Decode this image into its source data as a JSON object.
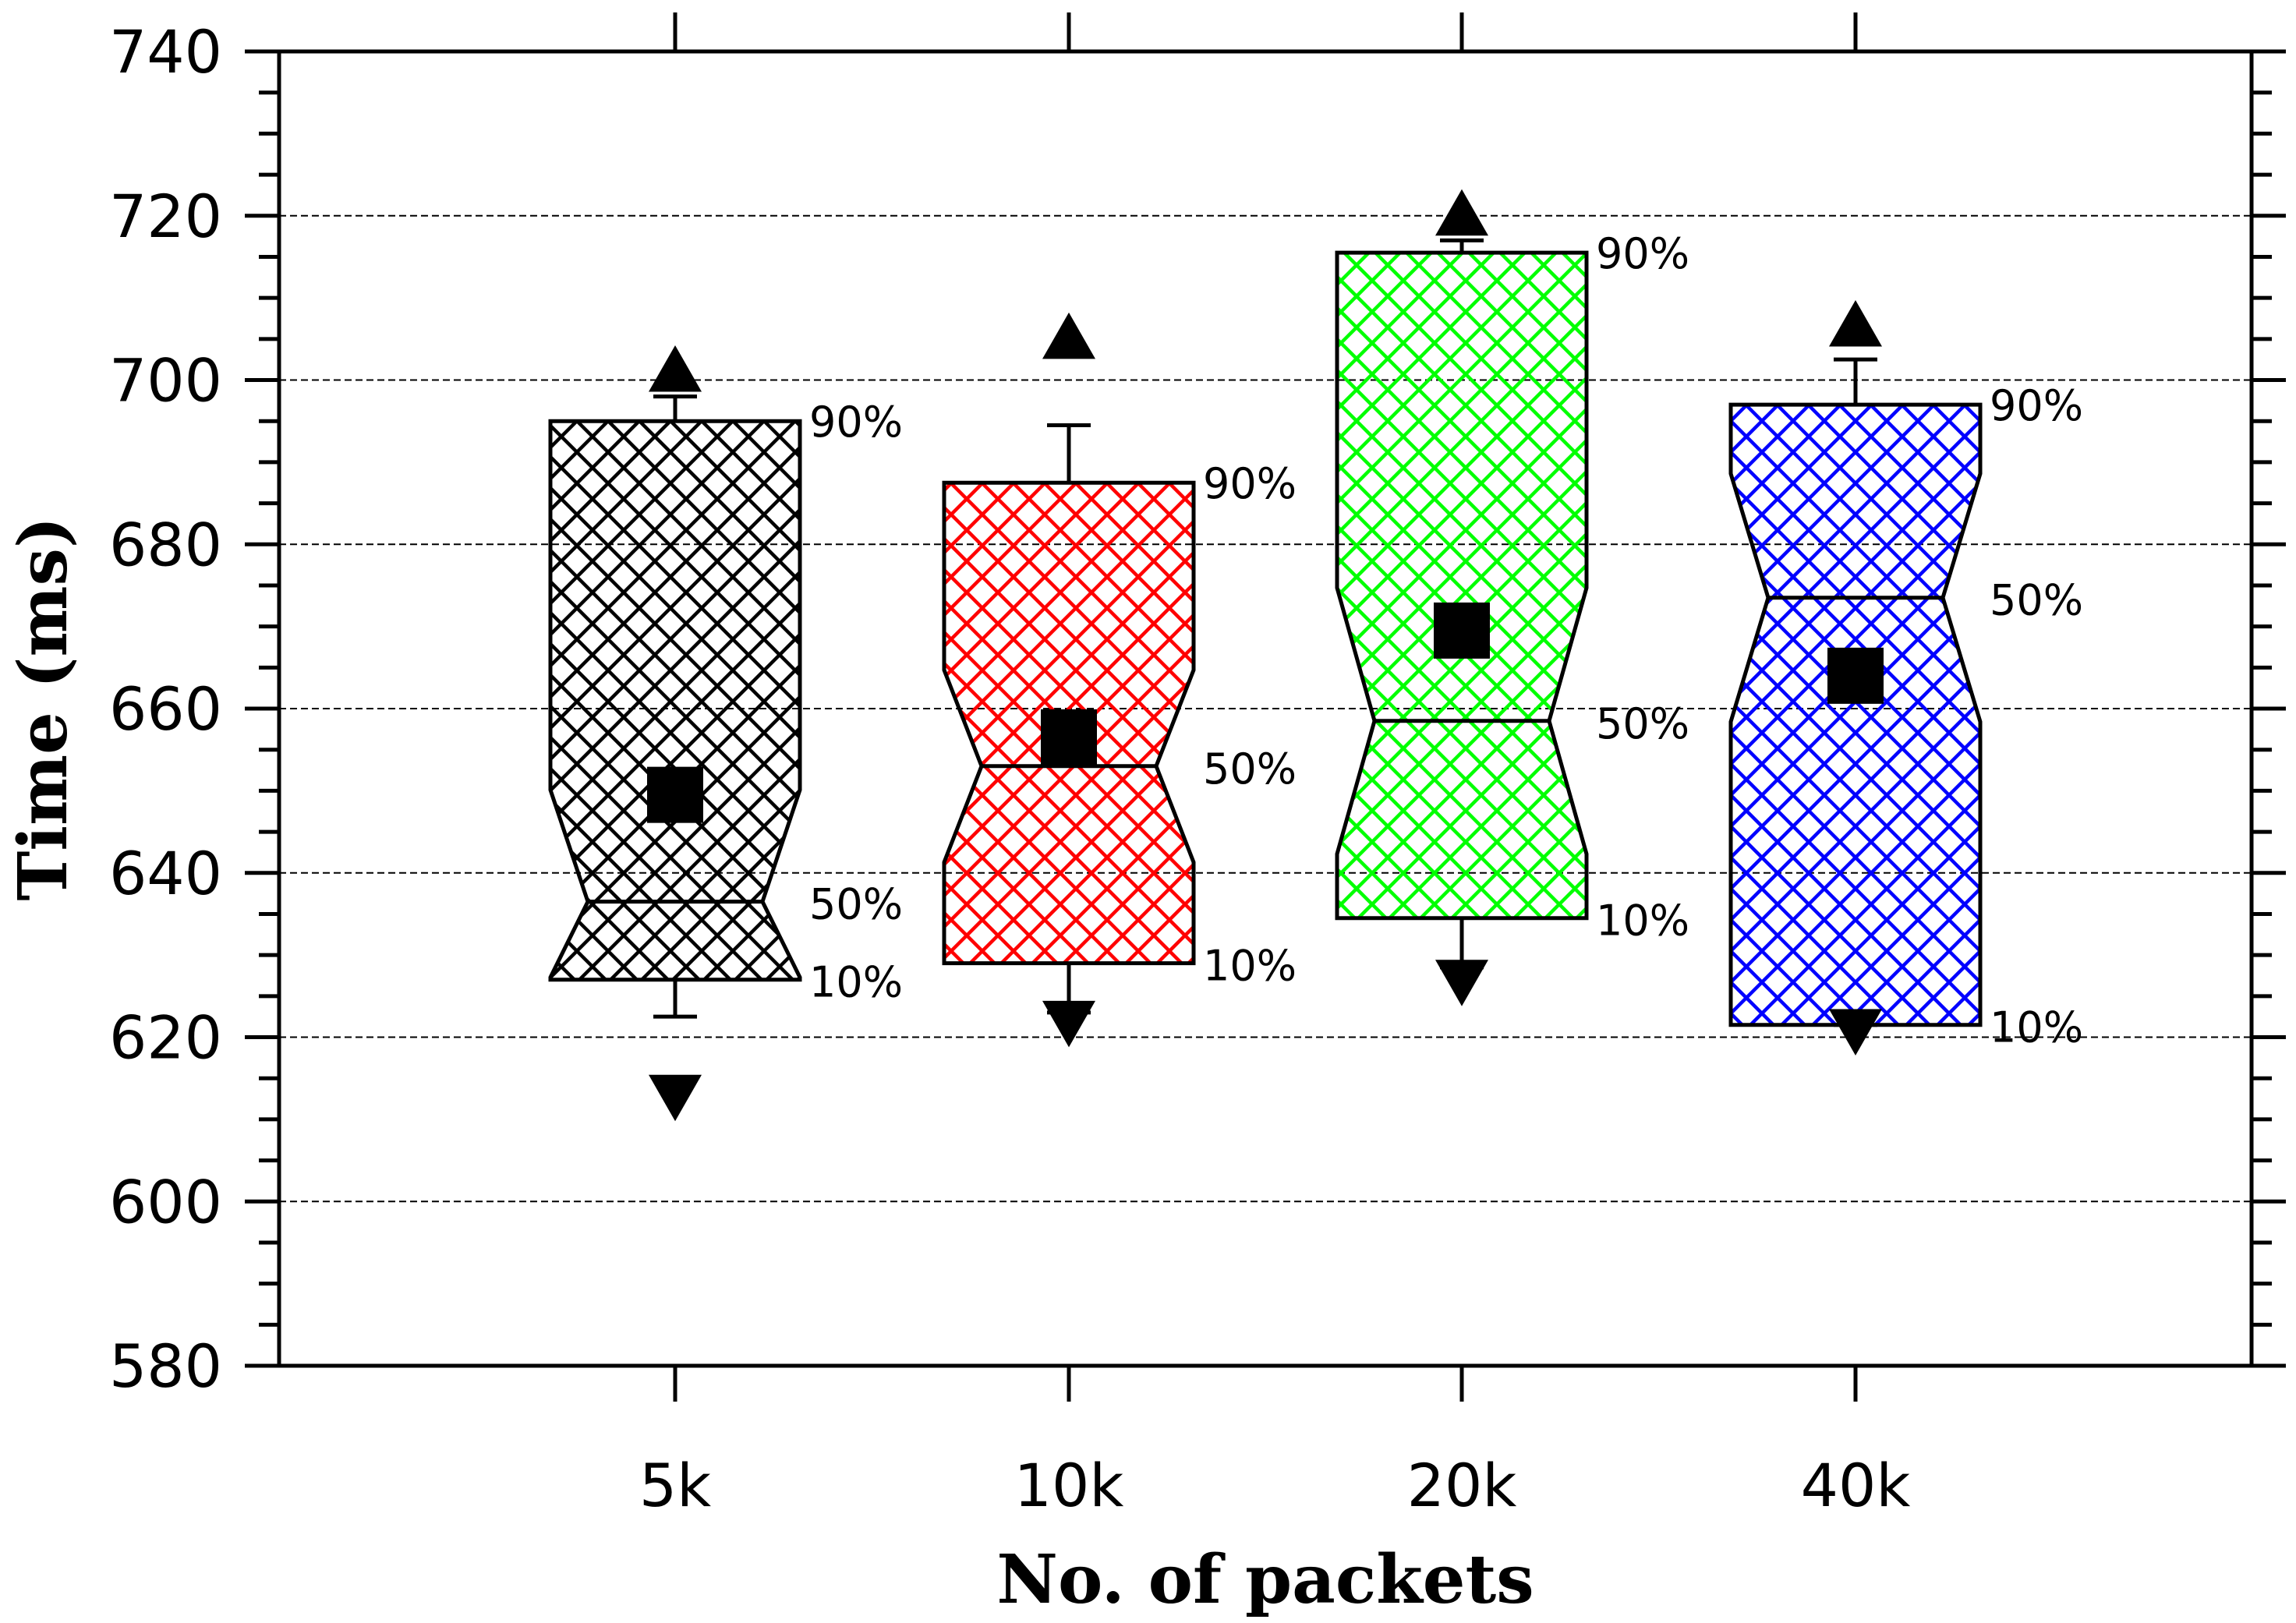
{
  "chart_data": {
    "type": "box",
    "xlabel": "No. of packets",
    "ylabel": "Time (ms)",
    "ylim": [
      580,
      740
    ],
    "yticks": [
      580,
      600,
      620,
      640,
      660,
      680,
      700,
      720,
      740
    ],
    "ytick_labels": [
      "580",
      "600",
      "620",
      "640",
      "660",
      "680",
      "700",
      "720",
      "740"
    ],
    "grid": true,
    "categories": [
      "5k",
      "10k",
      "20k",
      "40k"
    ],
    "percentile_labels": {
      "p10": "10%",
      "p50": "50%",
      "p90": "90%"
    },
    "boxes": [
      {
        "category": "5k",
        "color": "#000000",
        "p10": 627,
        "p50": 636.5,
        "p90": 695,
        "mean": 649.5,
        "whisker_low": 622.5,
        "whisker_high": 698,
        "max": 701,
        "min": 613
      },
      {
        "category": "10k",
        "color": "#ff0000",
        "p10": 629,
        "p50": 653,
        "p90": 687.5,
        "mean": 656.5,
        "whisker_low": 623,
        "whisker_high": 694.5,
        "max": 705,
        "min": 622
      },
      {
        "category": "20k",
        "color": "#00ff00",
        "p10": 634.5,
        "p50": 658.5,
        "p90": 715.5,
        "mean": 669.5,
        "whisker_low": 628.5,
        "whisker_high": 717,
        "max": 720,
        "min": 627
      },
      {
        "category": "40k",
        "color": "#0000ff",
        "p10": 621.5,
        "p50": 673.5,
        "p90": 697,
        "mean": 664,
        "whisker_low": 621.5,
        "whisker_high": 702.5,
        "max": 706.5,
        "min": 621
      }
    ]
  }
}
